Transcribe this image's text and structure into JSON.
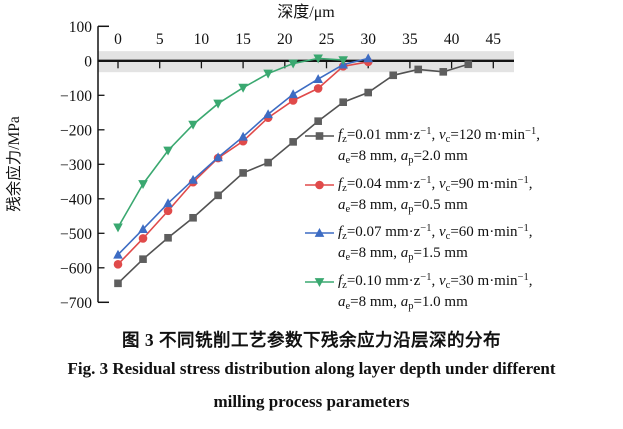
{
  "figure": {
    "caption_zh": "图 3  不同铣削工艺参数下残余应力沿层深的分布",
    "caption_en_line1": "Fig. 3  Residual stress distribution along layer depth under different",
    "caption_en_line2": "milling process parameters"
  },
  "chart_data": {
    "type": "line",
    "xlabel": "深度/μm",
    "ylabel": "残余应力/MPa",
    "xlim": [
      0,
      47.5
    ],
    "ylim": [
      -700,
      100
    ],
    "x_ticks": [
      0,
      5,
      10,
      15,
      20,
      25,
      30,
      35,
      40,
      45
    ],
    "x_tick_labels": [
      "0",
      "5",
      "10",
      "15",
      "20",
      "25",
      "30",
      "35",
      "40",
      "45"
    ],
    "y_ticks": [
      100,
      0,
      -100,
      -200,
      -300,
      -400,
      -500,
      -600,
      -700
    ],
    "y_tick_labels": [
      "100",
      "0",
      "−100",
      "−200",
      "−300",
      "−400",
      "−500",
      "−600",
      "−700"
    ],
    "grid": false,
    "legend_position": "right-inside",
    "zero_band": {
      "from": -33,
      "to": 28,
      "color": "#e3e3e3"
    },
    "axis_color": "#141414",
    "series": [
      {
        "name": "fz-0.01",
        "color": "#525252",
        "marker_fill": "#5e5e5e",
        "marker": "square",
        "x": [
          0,
          3,
          6,
          9,
          12,
          15,
          18,
          21,
          24,
          27,
          30,
          33,
          36,
          39,
          42
        ],
        "y": [
          -645,
          -575,
          -513,
          -455,
          -390,
          -325,
          -295,
          -235,
          -175,
          -120,
          -92,
          -42,
          -25,
          -32,
          -10
        ],
        "legend_line1": [
          {
            "t": "f",
            "s": "i"
          },
          {
            "t": "z",
            "s": "sub"
          },
          {
            "t": "=0.01 mm·z",
            "s": ""
          },
          {
            "t": "−1",
            "s": "sup"
          },
          {
            "t": ", ",
            "s": ""
          },
          {
            "t": "v",
            "s": "i"
          },
          {
            "t": "c",
            "s": "sub"
          },
          {
            "t": "=120 m·min",
            "s": ""
          },
          {
            "t": "−1",
            "s": "sup"
          },
          {
            "t": ",",
            "s": ""
          }
        ],
        "legend_line2": [
          {
            "t": "a",
            "s": "i"
          },
          {
            "t": "e",
            "s": "sub"
          },
          {
            "t": "=8 mm, ",
            "s": ""
          },
          {
            "t": "a",
            "s": "i"
          },
          {
            "t": "p",
            "s": "sub"
          },
          {
            "t": "=2.0 mm",
            "s": ""
          }
        ]
      },
      {
        "name": "fz-0.04",
        "color": "#e04a4a",
        "marker_fill": "#e04a4a",
        "marker": "circle",
        "x": [
          0,
          3,
          6,
          9,
          12,
          15,
          18,
          21,
          24,
          27,
          30
        ],
        "y": [
          -590,
          -515,
          -435,
          -352,
          -282,
          -233,
          -165,
          -115,
          -80,
          -16,
          -3
        ],
        "legend_line1": [
          {
            "t": "f",
            "s": "i"
          },
          {
            "t": "z",
            "s": "sub"
          },
          {
            "t": "=0.04 mm·z",
            "s": ""
          },
          {
            "t": "−1",
            "s": "sup"
          },
          {
            "t": ", ",
            "s": ""
          },
          {
            "t": "v",
            "s": "i"
          },
          {
            "t": "c",
            "s": "sub"
          },
          {
            "t": "=90 m·min",
            "s": ""
          },
          {
            "t": "−1",
            "s": "sup"
          },
          {
            "t": ",",
            "s": ""
          }
        ],
        "legend_line2": [
          {
            "t": "a",
            "s": "i"
          },
          {
            "t": "e",
            "s": "sub"
          },
          {
            "t": "=8 mm, ",
            "s": ""
          },
          {
            "t": "a",
            "s": "i"
          },
          {
            "t": "p",
            "s": "sub"
          },
          {
            "t": "=0.5 mm",
            "s": ""
          }
        ]
      },
      {
        "name": "fz-0.07",
        "color": "#3d6cc3",
        "marker_fill": "#3d6cc3",
        "marker": "triangle-up",
        "x": [
          0,
          3,
          6,
          9,
          12,
          15,
          18,
          21,
          24,
          27,
          30
        ],
        "y": [
          -562,
          -488,
          -413,
          -345,
          -280,
          -220,
          -155,
          -97,
          -53,
          -11,
          7
        ],
        "legend_line1": [
          {
            "t": "f",
            "s": "i"
          },
          {
            "t": "z",
            "s": "sub"
          },
          {
            "t": "=0.07 mm·z",
            "s": ""
          },
          {
            "t": "−1",
            "s": "sup"
          },
          {
            "t": ", ",
            "s": ""
          },
          {
            "t": "v",
            "s": "i"
          },
          {
            "t": "c",
            "s": "sub"
          },
          {
            "t": "=60 m·min",
            "s": ""
          },
          {
            "t": "−1",
            "s": "sup"
          },
          {
            "t": ",",
            "s": ""
          }
        ],
        "legend_line2": [
          {
            "t": "a",
            "s": "i"
          },
          {
            "t": "e",
            "s": "sub"
          },
          {
            "t": "=8 mm, ",
            "s": ""
          },
          {
            "t": "a",
            "s": "i"
          },
          {
            "t": "p",
            "s": "sub"
          },
          {
            "t": "=1.5 mm",
            "s": ""
          }
        ]
      },
      {
        "name": "fz-0.10",
        "color": "#3aa870",
        "marker_fill": "#3aa870",
        "marker": "triangle-down",
        "x": [
          0,
          3,
          6,
          9,
          12,
          15,
          18,
          21,
          24,
          27
        ],
        "y": [
          -483,
          -357,
          -260,
          -185,
          -124,
          -78,
          -37,
          -8,
          7,
          2
        ],
        "legend_line1": [
          {
            "t": "f",
            "s": "i"
          },
          {
            "t": "z",
            "s": "sub"
          },
          {
            "t": "=0.10 mm·z",
            "s": ""
          },
          {
            "t": "−1",
            "s": "sup"
          },
          {
            "t": ", ",
            "s": ""
          },
          {
            "t": "v",
            "s": "i"
          },
          {
            "t": "c",
            "s": "sub"
          },
          {
            "t": "=30 m·min",
            "s": ""
          },
          {
            "t": "−1",
            "s": "sup"
          },
          {
            "t": ",",
            "s": ""
          }
        ],
        "legend_line2": [
          {
            "t": "a",
            "s": "i"
          },
          {
            "t": "e",
            "s": "sub"
          },
          {
            "t": "=8 mm, ",
            "s": ""
          },
          {
            "t": "a",
            "s": "i"
          },
          {
            "t": "p",
            "s": "sub"
          },
          {
            "t": "=1.0 mm",
            "s": ""
          }
        ]
      }
    ]
  }
}
